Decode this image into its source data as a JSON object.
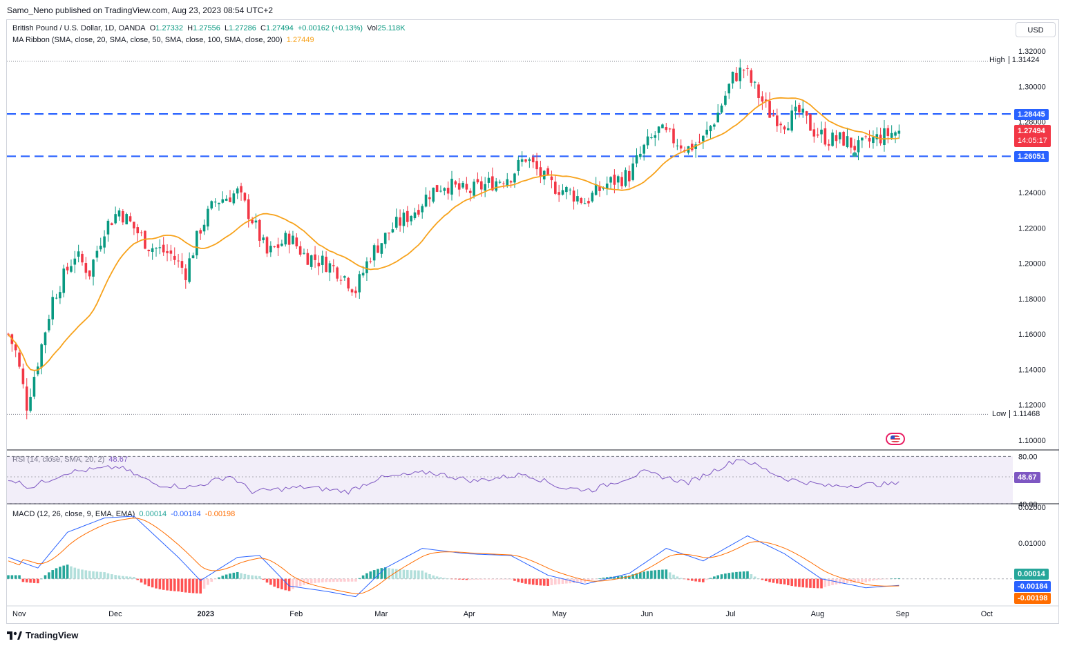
{
  "header": {
    "author_line": "Samo_Neno published on TradingView.com, Aug 23, 2023 08:54 UTC+2"
  },
  "legend": {
    "symbol": "British Pound / U.S. Dollar, 1D, OANDA",
    "open_label": "O",
    "open": "1.27332",
    "high_label": "H",
    "high": "1.27556",
    "low_label": "L",
    "low": "1.27286",
    "close_label": "C",
    "close": "1.27494",
    "change": "+0.00162 (+0.13%)",
    "vol_label": "Vol",
    "vol": "25.118K",
    "ma_name": "MA Ribbon (SMA, close, 20, SMA, close, 50, SMA, close, 100, SMA, close, 200)",
    "ma_value": "1.27449",
    "rsi_name": "RSI (14, close, SMA, 20, 2)",
    "rsi_value": "48.67",
    "macd_name": "MACD (12, 26, close, 9, EMA, EMA)",
    "macd_hist": "0.00014",
    "macd_line": "-0.00184",
    "macd_signal": "-0.00198"
  },
  "currency_button": "USD",
  "price_tags": {
    "high_label": "High",
    "high_value": "1.31424",
    "low_label": "Low",
    "low_value": "1.11468",
    "resistance": "1.28445",
    "current": "1.27494",
    "countdown": "14:05:17",
    "support": "1.26051",
    "rsi": "48.67",
    "macd_hist": "0.00014",
    "macd_line": "-0.00184",
    "macd_signal": "-0.00198"
  },
  "footer": {
    "brand": "TradingView"
  },
  "colors": {
    "up": "#089981",
    "down": "#f23645",
    "sma": "#f7a21b",
    "level": "#2962ff",
    "rsi": "#7e57c2",
    "macd": "#2962ff",
    "signal": "#ff6d00"
  },
  "chart_data": {
    "type": "candlestick",
    "price_axis": {
      "ylim": [
        1.1,
        1.32
      ],
      "ticks": [
        "1.32000",
        "1.30000",
        "1.28000",
        "1.26000",
        "1.24000",
        "1.22000",
        "1.20000",
        "1.18000",
        "1.16000",
        "1.14000",
        "1.12000",
        "1.10000"
      ]
    },
    "x_axis": {
      "ticks": [
        "Nov",
        "Dec",
        "2023",
        "Feb",
        "Mar",
        "Apr",
        "May",
        "Jun",
        "Jul",
        "Aug",
        "Sep",
        "Oct"
      ]
    },
    "horizontal_levels": [
      1.28445,
      1.26051
    ],
    "extremes": {
      "high": 1.31424,
      "low": 1.11468
    },
    "close_anchors": [
      {
        "m": 0,
        "c": 1.16
      },
      {
        "m": 2,
        "c": 1.15
      },
      {
        "m": 5,
        "c": 1.12
      },
      {
        "m": 8,
        "c": 1.145
      },
      {
        "m": 12,
        "c": 1.18
      },
      {
        "m": 18,
        "c": 1.205
      },
      {
        "m": 22,
        "c": 1.195
      },
      {
        "m": 26,
        "c": 1.22
      },
      {
        "m": 30,
        "c": 1.23
      },
      {
        "m": 34,
        "c": 1.22
      },
      {
        "m": 38,
        "c": 1.21
      },
      {
        "m": 44,
        "c": 1.205
      },
      {
        "m": 48,
        "c": 1.195
      },
      {
        "m": 52,
        "c": 1.22
      },
      {
        "m": 56,
        "c": 1.235
      },
      {
        "m": 62,
        "c": 1.24
      },
      {
        "m": 66,
        "c": 1.225
      },
      {
        "m": 70,
        "c": 1.205
      },
      {
        "m": 76,
        "c": 1.215
      },
      {
        "m": 80,
        "c": 1.205
      },
      {
        "m": 86,
        "c": 1.2
      },
      {
        "m": 90,
        "c": 1.195
      },
      {
        "m": 94,
        "c": 1.185
      },
      {
        "m": 98,
        "c": 1.205
      },
      {
        "m": 104,
        "c": 1.22
      },
      {
        "m": 110,
        "c": 1.23
      },
      {
        "m": 114,
        "c": 1.24
      },
      {
        "m": 118,
        "c": 1.245
      },
      {
        "m": 124,
        "c": 1.24
      },
      {
        "m": 130,
        "c": 1.245
      },
      {
        "m": 136,
        "c": 1.25
      },
      {
        "m": 140,
        "c": 1.26
      },
      {
        "m": 146,
        "c": 1.245
      },
      {
        "m": 152,
        "c": 1.24
      },
      {
        "m": 156,
        "c": 1.235
      },
      {
        "m": 162,
        "c": 1.245
      },
      {
        "m": 168,
        "c": 1.25
      },
      {
        "m": 172,
        "c": 1.265
      },
      {
        "m": 176,
        "c": 1.275
      },
      {
        "m": 180,
        "c": 1.27
      },
      {
        "m": 184,
        "c": 1.265
      },
      {
        "m": 188,
        "c": 1.27
      },
      {
        "m": 192,
        "c": 1.285
      },
      {
        "m": 196,
        "c": 1.305
      },
      {
        "m": 199,
        "c": 1.31
      },
      {
        "m": 203,
        "c": 1.295
      },
      {
        "m": 206,
        "c": 1.285
      },
      {
        "m": 210,
        "c": 1.28
      },
      {
        "m": 214,
        "c": 1.285
      },
      {
        "m": 218,
        "c": 1.275
      },
      {
        "m": 222,
        "c": 1.27
      },
      {
        "m": 226,
        "c": 1.27
      },
      {
        "m": 230,
        "c": 1.265
      },
      {
        "m": 234,
        "c": 1.27
      },
      {
        "m": 238,
        "c": 1.273
      },
      {
        "m": 241,
        "c": 1.27494
      }
    ],
    "rsi": {
      "ylim": [
        30,
        85
      ],
      "ticks": [
        "80.00",
        "40.00"
      ],
      "bands": [
        80,
        40
      ],
      "last": 48.67,
      "anchors": [
        {
          "m": 0,
          "v": 55
        },
        {
          "m": 6,
          "v": 45
        },
        {
          "m": 16,
          "v": 62
        },
        {
          "m": 30,
          "v": 68
        },
        {
          "m": 40,
          "v": 48
        },
        {
          "m": 50,
          "v": 45
        },
        {
          "m": 60,
          "v": 58
        },
        {
          "m": 66,
          "v": 40
        },
        {
          "m": 80,
          "v": 45
        },
        {
          "m": 92,
          "v": 40
        },
        {
          "m": 100,
          "v": 55
        },
        {
          "m": 114,
          "v": 62
        },
        {
          "m": 126,
          "v": 52
        },
        {
          "m": 140,
          "v": 60
        },
        {
          "m": 150,
          "v": 44
        },
        {
          "m": 158,
          "v": 42
        },
        {
          "m": 172,
          "v": 62
        },
        {
          "m": 184,
          "v": 50
        },
        {
          "m": 198,
          "v": 78
        },
        {
          "m": 210,
          "v": 55
        },
        {
          "m": 222,
          "v": 46
        },
        {
          "m": 232,
          "v": 48
        },
        {
          "m": 241,
          "v": 48.67
        }
      ]
    },
    "macd": {
      "ylim": [
        -0.007,
        0.02
      ],
      "ticks": [
        "0.02000",
        "0.01000"
      ],
      "last": {
        "hist": 0.00014,
        "macd": -0.00184,
        "signal": -0.00198
      },
      "anchors": [
        {
          "m": 0,
          "v": 0.006
        },
        {
          "m": 8,
          "v": 0.003
        },
        {
          "m": 16,
          "v": 0.013
        },
        {
          "m": 26,
          "v": 0.017
        },
        {
          "m": 34,
          "v": 0.0175
        },
        {
          "m": 46,
          "v": 0.006
        },
        {
          "m": 52,
          "v": -0.0005
        },
        {
          "m": 62,
          "v": 0.006
        },
        {
          "m": 68,
          "v": 0.0065
        },
        {
          "m": 76,
          "v": -0.002
        },
        {
          "m": 86,
          "v": -0.0035
        },
        {
          "m": 94,
          "v": -0.005
        },
        {
          "m": 102,
          "v": 0.003
        },
        {
          "m": 112,
          "v": 0.0085
        },
        {
          "m": 124,
          "v": 0.007
        },
        {
          "m": 136,
          "v": 0.0065
        },
        {
          "m": 146,
          "v": 0.001
        },
        {
          "m": 156,
          "v": -0.0015
        },
        {
          "m": 168,
          "v": 0.0015
        },
        {
          "m": 178,
          "v": 0.0085
        },
        {
          "m": 188,
          "v": 0.005
        },
        {
          "m": 200,
          "v": 0.012
        },
        {
          "m": 210,
          "v": 0.007
        },
        {
          "m": 220,
          "v": 0.0
        },
        {
          "m": 232,
          "v": -0.0025
        },
        {
          "m": 241,
          "v": -0.00184
        }
      ]
    }
  }
}
